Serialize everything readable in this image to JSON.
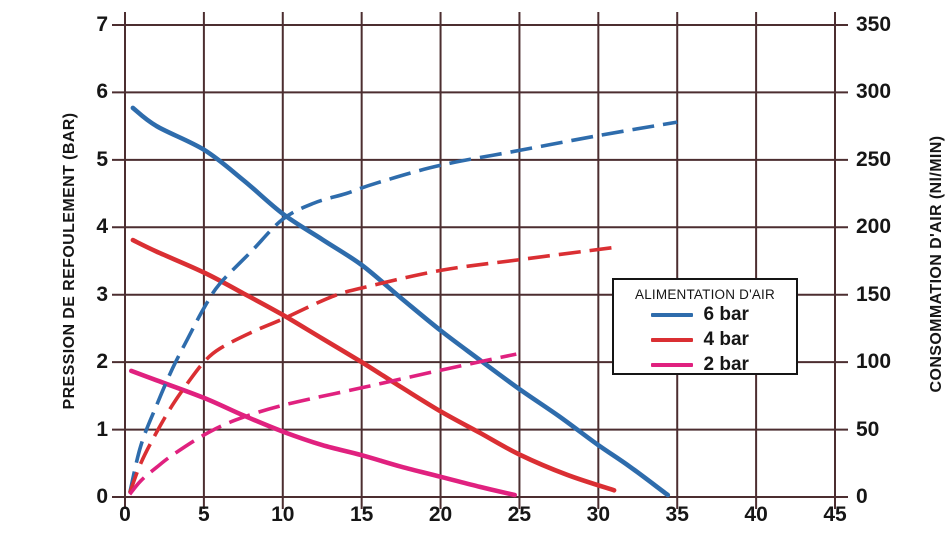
{
  "chart_data": {
    "type": "line",
    "grid": true,
    "x_axis": {
      "range": [
        0,
        45
      ],
      "ticks": [
        0,
        5,
        10,
        15,
        20,
        25,
        30,
        35,
        40,
        45
      ]
    },
    "left_axis": {
      "title": "PRESSION DE REFOULEMENT (BAR)",
      "range": [
        0,
        7
      ],
      "ticks": [
        0,
        1,
        2,
        3,
        4,
        5,
        6,
        7
      ]
    },
    "right_axis": {
      "title": "CONSOMMATION D'AIR (Nl/MIN)",
      "range": [
        0,
        350
      ],
      "ticks": [
        0,
        50,
        100,
        150,
        200,
        250,
        300,
        350
      ]
    },
    "colors": {
      "grid": "#4c2e30",
      "blue": "#2e6cac",
      "red": "#da2f33",
      "pink": "#e0217f"
    },
    "legend": {
      "title": "ALIMENTATION D'AIR",
      "position": "right-middle",
      "items": [
        {
          "label": "6 bar",
          "color": "#2e6cac"
        },
        {
          "label": "4 bar",
          "color": "#da2f33"
        },
        {
          "label": "2 bar",
          "color": "#e0217f"
        }
      ]
    },
    "series": [
      {
        "name": "6 bar pression de refoulement",
        "axis": "left",
        "style": "solid",
        "color": "#2e6cac",
        "points": [
          [
            0.5,
            5.77
          ],
          [
            2,
            5.5
          ],
          [
            5,
            5.15
          ],
          [
            7.5,
            4.7
          ],
          [
            10,
            4.2
          ],
          [
            12.5,
            3.82
          ],
          [
            15,
            3.44
          ],
          [
            17.5,
            2.95
          ],
          [
            20,
            2.47
          ],
          [
            22.5,
            2.03
          ],
          [
            25,
            1.6
          ],
          [
            27.5,
            1.2
          ],
          [
            30,
            0.77
          ],
          [
            32,
            0.45
          ],
          [
            34.4,
            0.03
          ]
        ]
      },
      {
        "name": "4 bar pression de refoulement",
        "axis": "left",
        "style": "solid",
        "color": "#da2f33",
        "points": [
          [
            0.5,
            3.81
          ],
          [
            2,
            3.64
          ],
          [
            5,
            3.33
          ],
          [
            7.5,
            3.02
          ],
          [
            10,
            2.7
          ],
          [
            12.5,
            2.35
          ],
          [
            15,
            2.0
          ],
          [
            17.5,
            1.63
          ],
          [
            20,
            1.27
          ],
          [
            22.5,
            0.95
          ],
          [
            25,
            0.63
          ],
          [
            28,
            0.33
          ],
          [
            31,
            0.1
          ]
        ]
      },
      {
        "name": "2 bar pression de refoulement",
        "axis": "left",
        "style": "solid",
        "color": "#e0217f",
        "points": [
          [
            0.4,
            1.87
          ],
          [
            2,
            1.73
          ],
          [
            5,
            1.47
          ],
          [
            7.5,
            1.21
          ],
          [
            10,
            0.97
          ],
          [
            12.5,
            0.77
          ],
          [
            15,
            0.62
          ],
          [
            17.5,
            0.45
          ],
          [
            20,
            0.3
          ],
          [
            22.5,
            0.15
          ],
          [
            24.7,
            0.03
          ]
        ]
      },
      {
        "name": "6 bar consommation d'air",
        "axis": "right",
        "style": "dashed",
        "color": "#2e6cac",
        "points": [
          [
            0.3,
            3
          ],
          [
            1,
            38
          ],
          [
            2,
            68
          ],
          [
            3,
            95
          ],
          [
            4,
            118
          ],
          [
            5,
            140
          ],
          [
            6,
            158
          ],
          [
            8,
            182
          ],
          [
            10,
            206
          ],
          [
            12,
            218
          ],
          [
            14,
            225
          ],
          [
            16,
            233
          ],
          [
            20,
            246
          ],
          [
            25,
            257
          ],
          [
            30,
            268
          ],
          [
            35,
            278
          ]
        ]
      },
      {
        "name": "4 bar consommation d'air",
        "axis": "right",
        "style": "dashed",
        "color": "#da2f33",
        "points": [
          [
            0.3,
            3
          ],
          [
            1,
            25
          ],
          [
            2,
            48
          ],
          [
            3,
            68
          ],
          [
            4,
            85
          ],
          [
            5,
            100
          ],
          [
            6,
            110
          ],
          [
            8,
            122
          ],
          [
            10,
            132
          ],
          [
            13,
            148
          ],
          [
            15,
            155
          ],
          [
            20,
            168
          ],
          [
            25,
            176
          ],
          [
            31,
            185
          ]
        ]
      },
      {
        "name": "2 bar consommation d'air",
        "axis": "right",
        "style": "dashed",
        "color": "#e0217f",
        "points": [
          [
            0.3,
            2
          ],
          [
            1,
            12
          ],
          [
            2,
            22
          ],
          [
            3,
            31
          ],
          [
            5,
            46
          ],
          [
            7,
            57
          ],
          [
            10,
            68
          ],
          [
            15,
            81
          ],
          [
            20,
            94
          ],
          [
            24.8,
            106
          ]
        ]
      }
    ]
  }
}
